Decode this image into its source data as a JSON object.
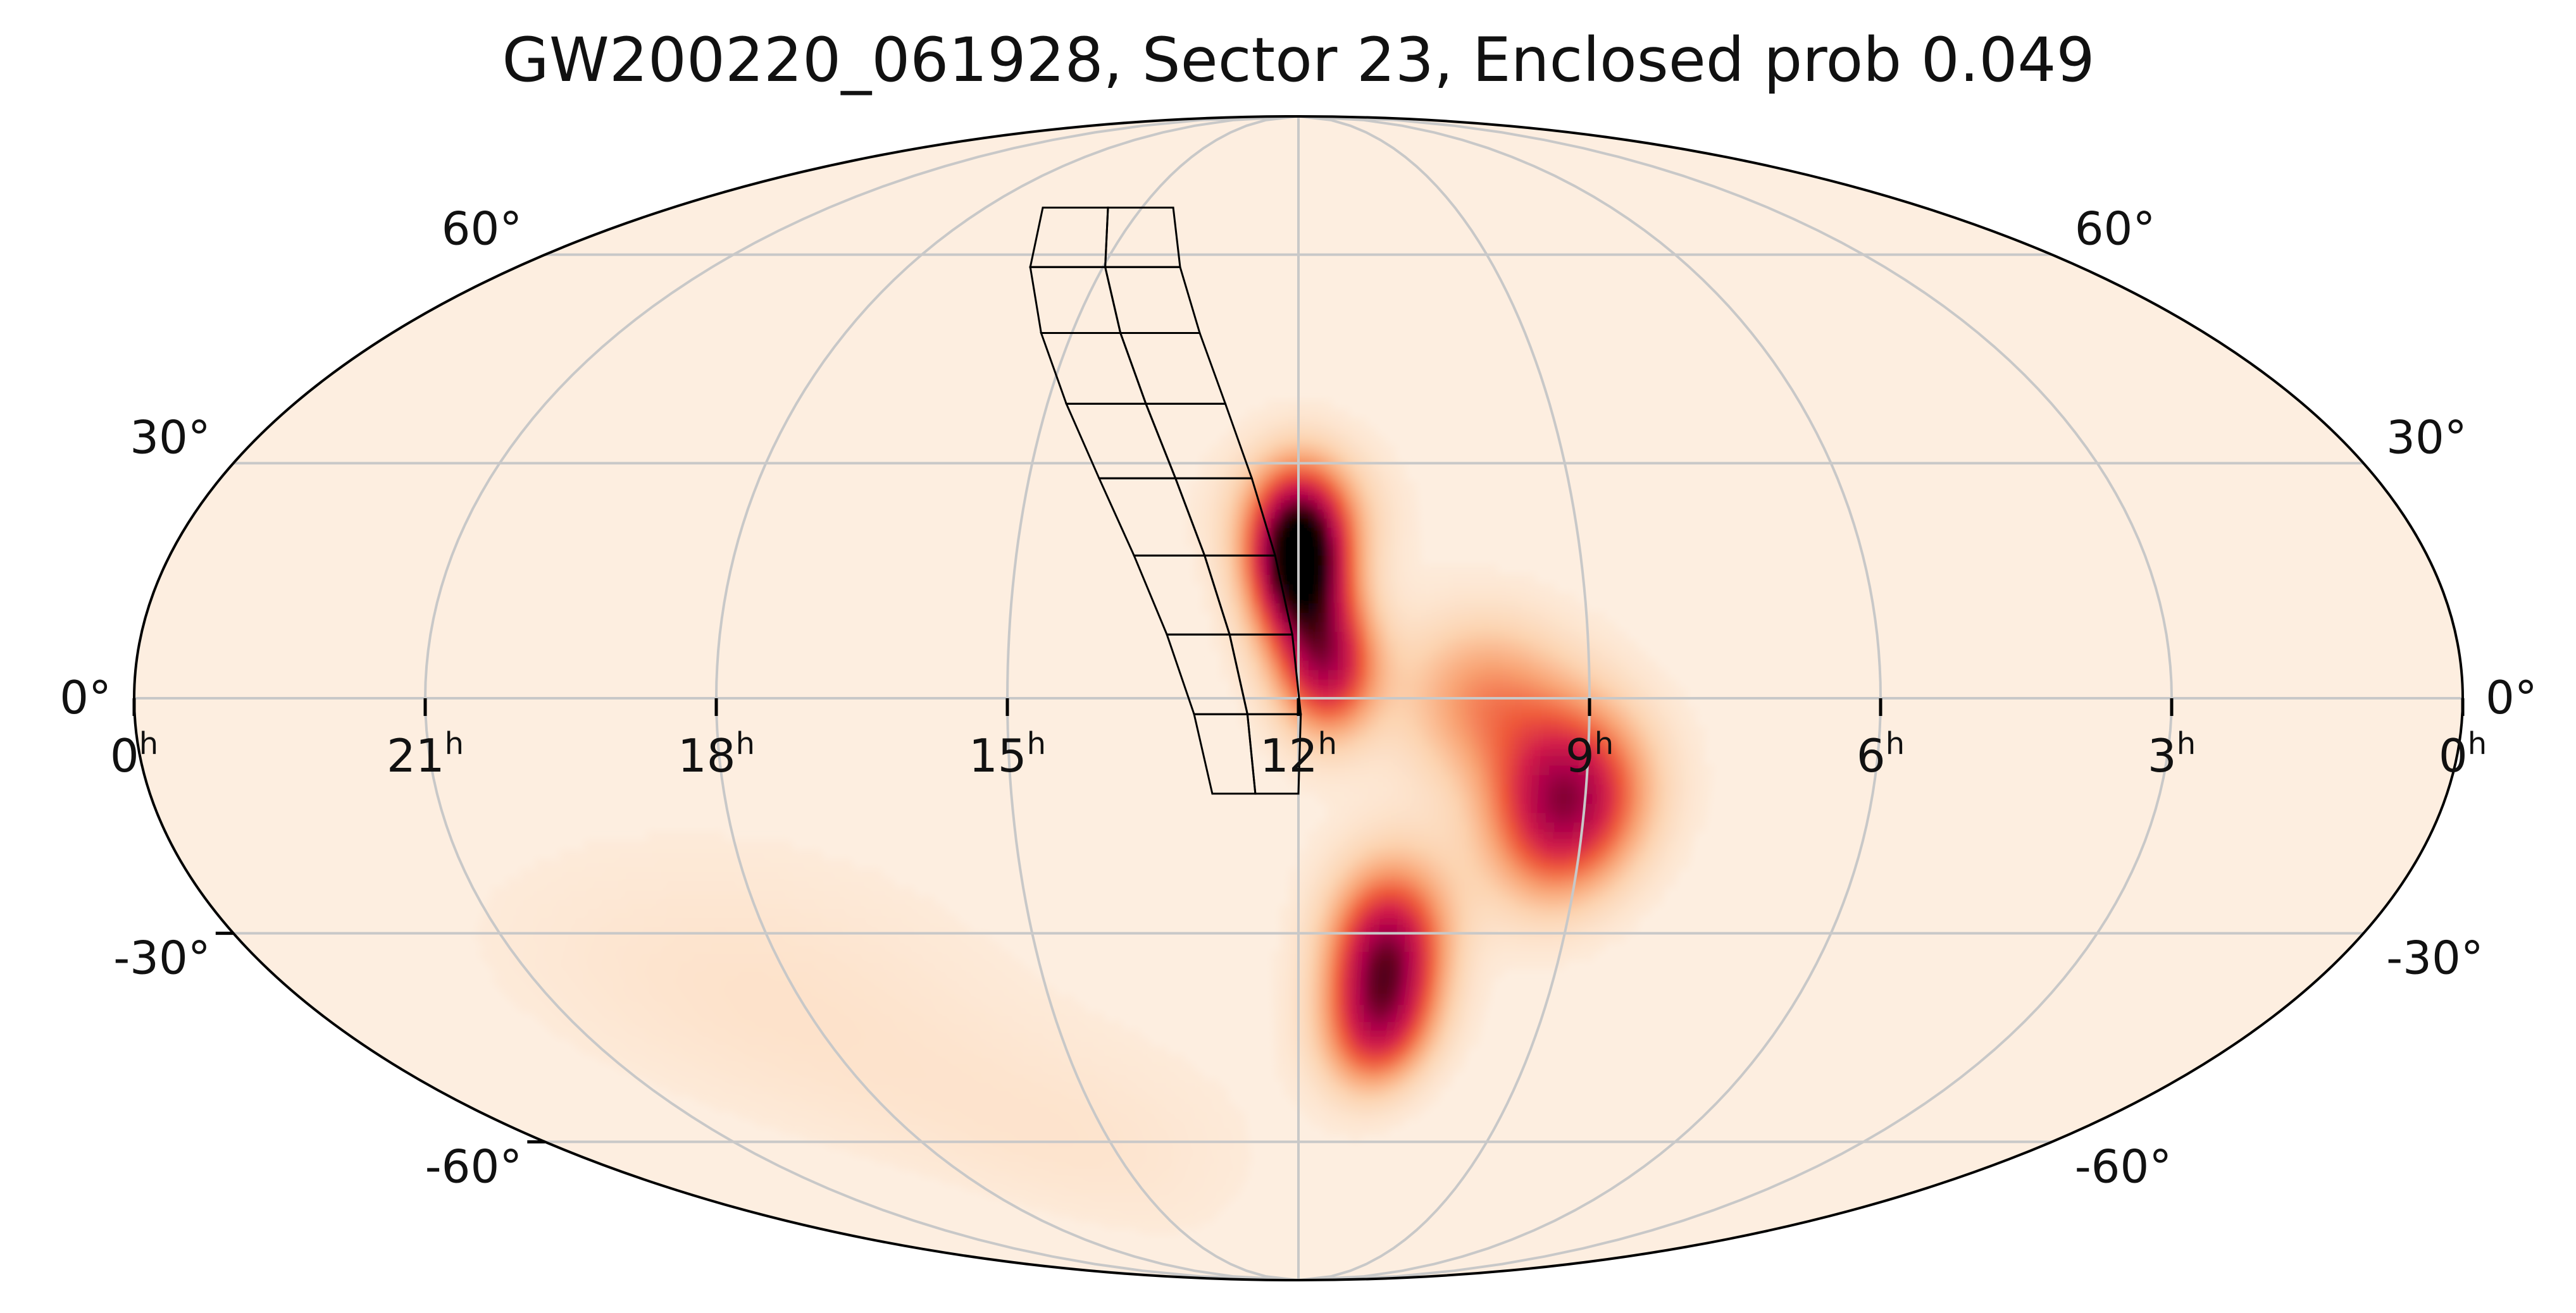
{
  "chart_data": {
    "type": "heatmap",
    "projection": "mollweide",
    "title": "GW200220_061928, Sector 23, Enclosed prob 0.049",
    "colormap": [
      "#fdeee0",
      "#fcd3b0",
      "#f8a070",
      "#ef5a3a",
      "#d21e4a",
      "#a8004a",
      "#4a0012",
      "#000000"
    ],
    "ra_ticks_hours": [
      0,
      21,
      18,
      15,
      12,
      9,
      6,
      3,
      0
    ],
    "ra_tick_labels": [
      "0",
      "21",
      "18",
      "15",
      "12",
      "9",
      "6",
      "3",
      "0"
    ],
    "ra_tick_suffix": "h",
    "dec_ticks_deg": [
      60,
      30,
      0,
      -30,
      -60
    ],
    "dec_labels_left": [
      "60°",
      "30°",
      "0°",
      "-30°",
      "-60°"
    ],
    "dec_labels_right": [
      "60°",
      "30°",
      "0°",
      "-30°",
      "-60°"
    ],
    "grid": true,
    "probability_blobs": [
      {
        "ra_h": 12.0,
        "dec": 17,
        "sigma_ra_h": 0.35,
        "sigma_dec": 7,
        "amplitude": 1.0
      },
      {
        "ra_h": 11.7,
        "dec": 4,
        "sigma_ra_h": 0.35,
        "sigma_dec": 6,
        "amplitude": 0.6
      },
      {
        "ra_h": 11.95,
        "dec": 24,
        "sigma_ra_h": 0.55,
        "sigma_dec": 6,
        "amplitude": 0.25
      },
      {
        "ra_h": 9.2,
        "dec": -13,
        "sigma_ra_h": 0.55,
        "sigma_dec": 8,
        "amplitude": 0.75
      },
      {
        "ra_h": 10.1,
        "dec": 0,
        "sigma_ra_h": 0.6,
        "sigma_dec": 7,
        "amplitude": 0.3
      },
      {
        "ra_h": 11.0,
        "dec": -33,
        "sigma_ra_h": 0.45,
        "sigma_dec": 8,
        "amplitude": 0.75
      },
      {
        "ra_h": 11.0,
        "dec": -44,
        "sigma_ra_h": 0.5,
        "sigma_dec": 6,
        "amplitude": 0.35
      },
      {
        "ra_h": 18.5,
        "dec": -38,
        "sigma_ra_h": 2.0,
        "sigma_dec": 14,
        "amplitude": 0.06
      },
      {
        "ra_h": 15.5,
        "dec": -60,
        "sigma_ra_h": 2.0,
        "sigma_dec": 12,
        "amplitude": 0.05
      }
    ],
    "sector_footprint": {
      "description": "TESS Sector 23 camera/CCD footprint outline",
      "cameras": 4,
      "ccds_per_camera": 4,
      "ra_h_start": 12.9,
      "ra_h_end": 17.6,
      "dec_start": -12,
      "dec_end": 68,
      "ra_h_center_start": 12.65,
      "ra_h_center_end": 15.7
    },
    "enclosed_probability": 0.049
  }
}
